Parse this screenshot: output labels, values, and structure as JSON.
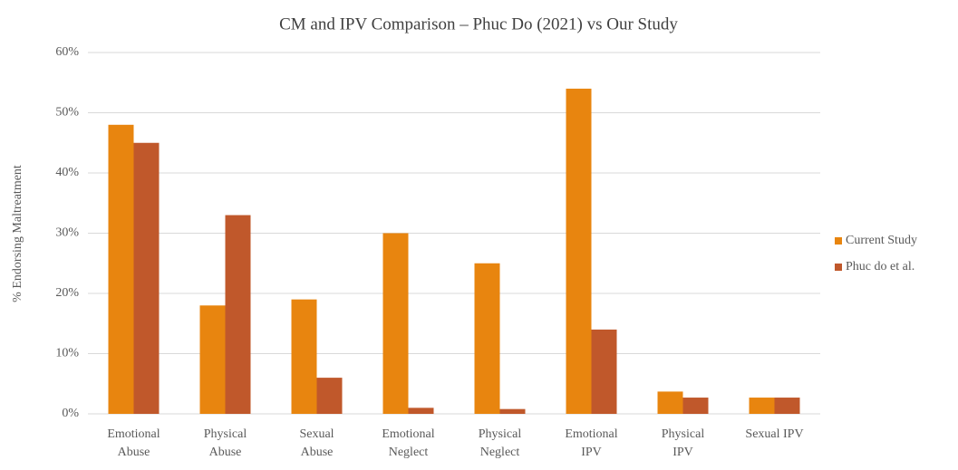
{
  "chart_data": {
    "type": "bar",
    "title": "CM and IPV Comparison – Phuc Do (2021) vs Our Study",
    "y_label": "% Endorsing Maltreatment",
    "categories": [
      "Emotional Abuse",
      "Physical Abuse",
      "Sexual Abuse",
      "Emotional Neglect",
      "Physical Neglect",
      "Emotional IPV",
      "Physical IPV",
      "Sexual IPV"
    ],
    "series": [
      {
        "name": "Current Study",
        "color": "#e8850f",
        "values": [
          48,
          18,
          19,
          30,
          25,
          54,
          3.7,
          2.7
        ]
      },
      {
        "name": "Phuc do et al.",
        "color": "#c0582b",
        "values": [
          45,
          33,
          6,
          1,
          0.8,
          14,
          2.7,
          2.7
        ]
      }
    ],
    "ylim": [
      0,
      60
    ],
    "yticks": [
      {
        "value": 0,
        "label": "0%"
      },
      {
        "value": 10,
        "label": "10%"
      },
      {
        "value": 20,
        "label": "20%"
      },
      {
        "value": 30,
        "label": "30%"
      },
      {
        "value": 40,
        "label": "40%"
      },
      {
        "value": 50,
        "label": "50%"
      },
      {
        "value": 60,
        "label": "60%"
      }
    ],
    "grid": true,
    "legend": "right"
  }
}
